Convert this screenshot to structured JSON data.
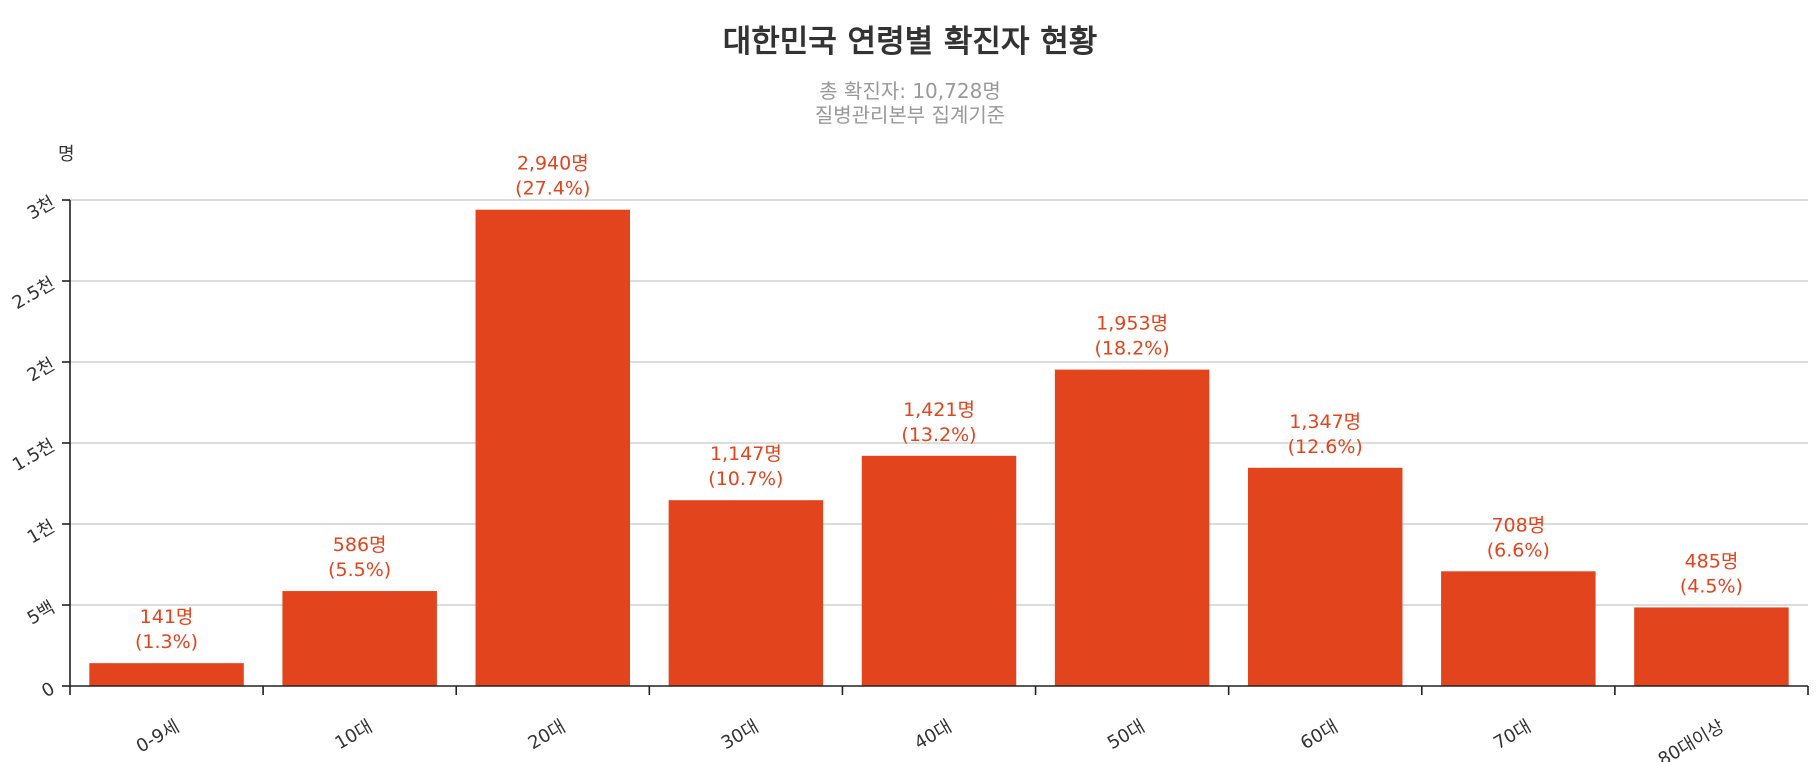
{
  "chart_data": {
    "type": "bar",
    "title": "대한민국 연령별 확진자 현황",
    "subtitle_lines": [
      "총 확진자: 10,728명",
      "질병관리본부  집계기준"
    ],
    "ylabel": "명",
    "xlabel": "",
    "ylim": [
      0,
      3000
    ],
    "grid": true,
    "y_ticks": [
      {
        "value": 0,
        "label": "0"
      },
      {
        "value": 500,
        "label": "5백"
      },
      {
        "value": 1000,
        "label": "1천"
      },
      {
        "value": 1500,
        "label": "1.5천"
      },
      {
        "value": 2000,
        "label": "2천"
      },
      {
        "value": 2500,
        "label": "2.5천"
      },
      {
        "value": 3000,
        "label": "3천"
      }
    ],
    "categories": [
      "0-9세",
      "10대",
      "20대",
      "30대",
      "40대",
      "50대",
      "60대",
      "70대",
      "80대이상"
    ],
    "values": [
      141,
      586,
      2940,
      1147,
      1421,
      1953,
      1347,
      708,
      485
    ],
    "data_labels": [
      [
        "141명",
        "(1.3%)"
      ],
      [
        "586명",
        "(5.5%)"
      ],
      [
        "2,940명",
        "(27.4%)"
      ],
      [
        "1,147명",
        "(10.7%)"
      ],
      [
        "1,421명",
        "(13.2%)"
      ],
      [
        "1,953명",
        "(18.2%)"
      ],
      [
        "1,347명",
        "(12.6%)"
      ],
      [
        "708명",
        "(6.6%)"
      ],
      [
        "485명",
        "(4.5%)"
      ]
    ],
    "bar_color": "#e2441e",
    "label_color": "#e2441e"
  }
}
